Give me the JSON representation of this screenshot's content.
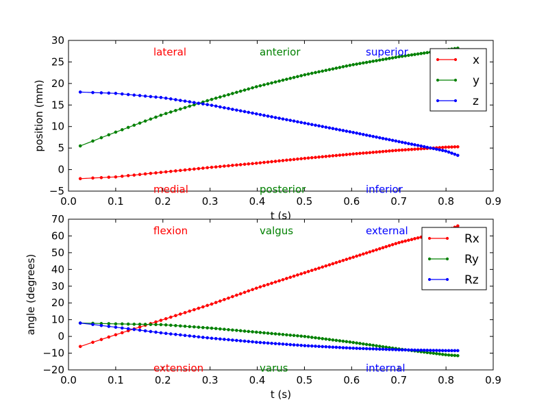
{
  "chart_data": [
    {
      "type": "line",
      "xlabel": "t (s)",
      "ylabel": "position (mm)",
      "xlim": [
        0.0,
        0.9
      ],
      "ylim": [
        -5,
        30
      ],
      "xticks": [
        "0.0",
        "0.1",
        "0.2",
        "0.3",
        "0.4",
        "0.5",
        "0.6",
        "0.7",
        "0.8",
        "0.9"
      ],
      "yticks": [
        "−5",
        "0",
        "5",
        "10",
        "15",
        "20",
        "25",
        "30"
      ],
      "grid": false,
      "legend_position": "top-right",
      "annotations": [
        {
          "text": "lateral",
          "x": 0.18,
          "y": 27.3,
          "color": "#ff0000"
        },
        {
          "text": "anterior",
          "x": 0.405,
          "y": 27.3,
          "color": "#008000"
        },
        {
          "text": "superior",
          "x": 0.63,
          "y": 27.3,
          "color": "#0000ff"
        },
        {
          "text": "medial",
          "x": 0.18,
          "y": -4.6,
          "color": "#ff0000"
        },
        {
          "text": "posterior",
          "x": 0.405,
          "y": -4.6,
          "color": "#008000"
        },
        {
          "text": "inferior",
          "x": 0.63,
          "y": -4.6,
          "color": "#0000ff"
        }
      ],
      "series": [
        {
          "name": "x",
          "color": "#ff0000",
          "points": [
            [
              0.025,
              -2.1
            ],
            [
              0.1,
              -1.7
            ],
            [
              0.2,
              -0.6
            ],
            [
              0.3,
              0.5
            ],
            [
              0.4,
              1.5
            ],
            [
              0.5,
              2.6
            ],
            [
              0.6,
              3.6
            ],
            [
              0.7,
              4.5
            ],
            [
              0.8,
              5.2
            ],
            [
              0.825,
              5.3
            ]
          ]
        },
        {
          "name": "y",
          "color": "#008000",
          "points": [
            [
              0.025,
              5.5
            ],
            [
              0.1,
              8.7
            ],
            [
              0.2,
              12.8
            ],
            [
              0.3,
              16.2
            ],
            [
              0.4,
              19.3
            ],
            [
              0.5,
              22.0
            ],
            [
              0.6,
              24.3
            ],
            [
              0.7,
              26.2
            ],
            [
              0.8,
              27.8
            ],
            [
              0.825,
              28.2
            ]
          ]
        },
        {
          "name": "z",
          "color": "#0000ff",
          "points": [
            [
              0.025,
              18.0
            ],
            [
              0.1,
              17.7
            ],
            [
              0.2,
              16.7
            ],
            [
              0.3,
              15.0
            ],
            [
              0.4,
              12.9
            ],
            [
              0.5,
              10.8
            ],
            [
              0.6,
              8.7
            ],
            [
              0.7,
              6.5
            ],
            [
              0.8,
              4.3
            ],
            [
              0.825,
              3.3
            ]
          ]
        }
      ]
    },
    {
      "type": "line",
      "xlabel": "t (s)",
      "ylabel": "angle (degrees)",
      "xlim": [
        0.0,
        0.9
      ],
      "ylim": [
        -20,
        70
      ],
      "xticks": [
        "0.0",
        "0.1",
        "0.2",
        "0.3",
        "0.4",
        "0.5",
        "0.6",
        "0.7",
        "0.8",
        "0.9"
      ],
      "yticks": [
        "−20",
        "−10",
        "0",
        "10",
        "20",
        "30",
        "40",
        "50",
        "60",
        "70"
      ],
      "grid": false,
      "legend_position": "top-right",
      "annotations": [
        {
          "text": "flexion",
          "x": 0.18,
          "y": 63,
          "color": "#ff0000"
        },
        {
          "text": "valgus",
          "x": 0.405,
          "y": 63,
          "color": "#008000"
        },
        {
          "text": "external",
          "x": 0.63,
          "y": 63,
          "color": "#0000ff"
        },
        {
          "text": "extension",
          "x": 0.18,
          "y": -19,
          "color": "#ff0000"
        },
        {
          "text": "varus",
          "x": 0.405,
          "y": -19,
          "color": "#008000"
        },
        {
          "text": "internal",
          "x": 0.63,
          "y": -19,
          "color": "#0000ff"
        }
      ],
      "series": [
        {
          "name": "Rx",
          "color": "#ff0000",
          "points": [
            [
              0.025,
              -6
            ],
            [
              0.1,
              1
            ],
            [
              0.2,
              10
            ],
            [
              0.3,
              19
            ],
            [
              0.4,
              29
            ],
            [
              0.5,
              38
            ],
            [
              0.6,
              47
            ],
            [
              0.7,
              56
            ],
            [
              0.8,
              63
            ],
            [
              0.825,
              66
            ]
          ]
        },
        {
          "name": "Ry",
          "color": "#008000",
          "points": [
            [
              0.025,
              8
            ],
            [
              0.1,
              7.5
            ],
            [
              0.2,
              7
            ],
            [
              0.3,
              5
            ],
            [
              0.4,
              2.5
            ],
            [
              0.5,
              0
            ],
            [
              0.6,
              -3.5
            ],
            [
              0.7,
              -7.5
            ],
            [
              0.8,
              -11
            ],
            [
              0.825,
              -11.5
            ]
          ]
        },
        {
          "name": "Rz",
          "color": "#0000ff",
          "points": [
            [
              0.025,
              8
            ],
            [
              0.1,
              5.5
            ],
            [
              0.2,
              2
            ],
            [
              0.3,
              -1
            ],
            [
              0.4,
              -3.5
            ],
            [
              0.5,
              -5.5
            ],
            [
              0.6,
              -7
            ],
            [
              0.7,
              -8
            ],
            [
              0.8,
              -8.5
            ],
            [
              0.825,
              -8.5
            ]
          ]
        }
      ]
    }
  ]
}
